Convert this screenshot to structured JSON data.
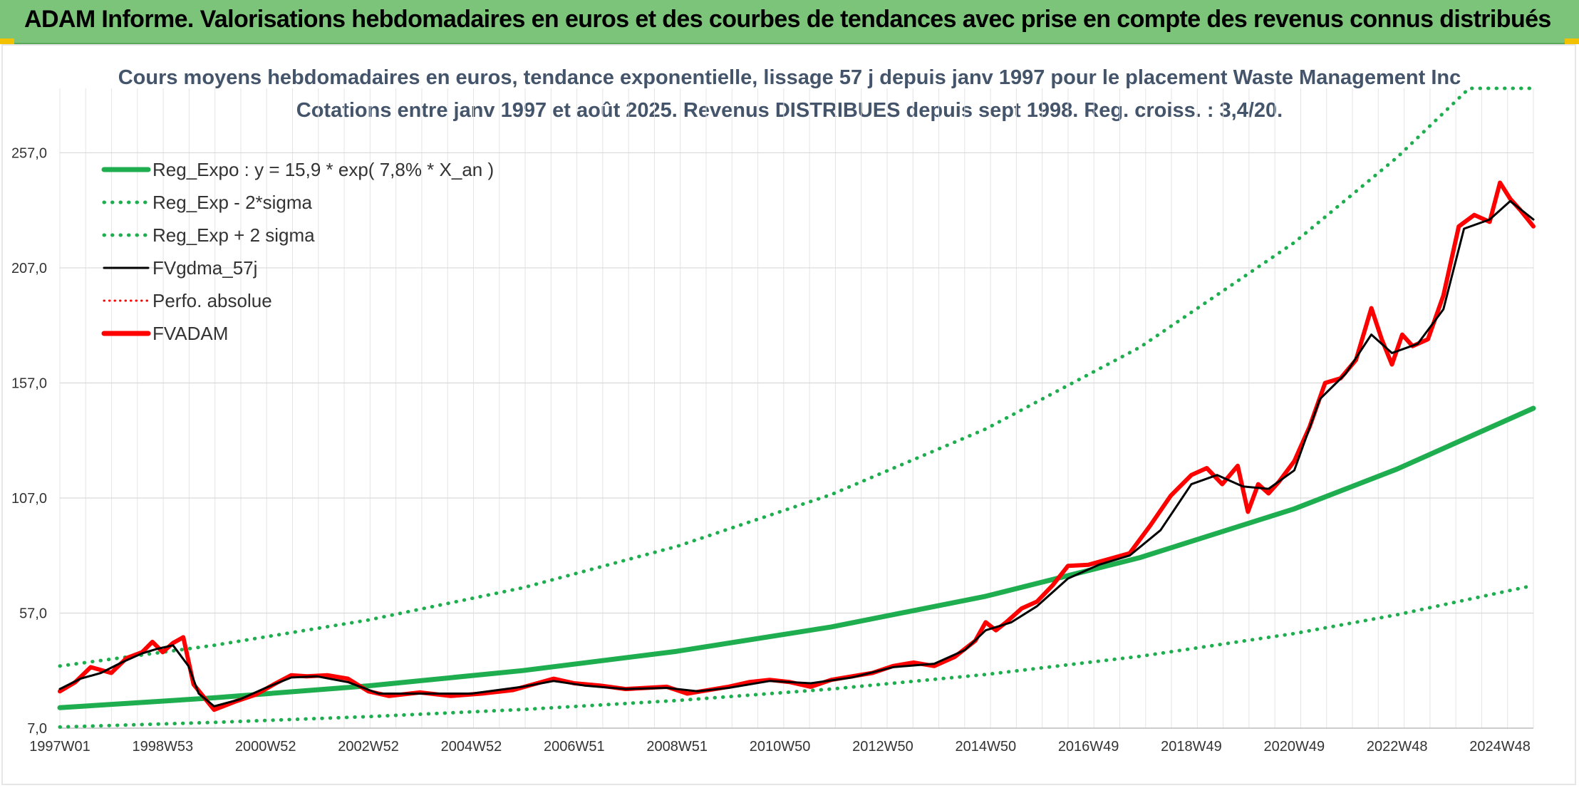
{
  "header": {
    "title": "ADAM Informe. Valorisations hebdomadaires en euros et des courbes de tendances avec prise en compte des revenus connus distribués"
  },
  "colors": {
    "banner": "#7cc47a",
    "regression": "#1fae4f",
    "fvadam": "#ff0000",
    "fvgdma": "#000000",
    "perfo": "#ff0000"
  },
  "chart_data": {
    "type": "line",
    "title": "Cours moyens hebdomadaires en euros, tendance exponentielle, lissage 57 j depuis janv 1997 pour le placement Waste Management Inc",
    "subtitle": "Cotations entre janv 1997 et août 2025. Revenus DISTRIBUES depuis sept 1998. Reg. croiss. : 3,4/20.",
    "xlabel": "",
    "ylabel": "",
    "x_range": [
      1997.0,
      2025.65
    ],
    "ylim": [
      7.0,
      285.0
    ],
    "y_ticks": [
      "7,0",
      "57,0",
      "107,0",
      "157,0",
      "207,0",
      "257,0"
    ],
    "y_tick_values": [
      7,
      57,
      107,
      157,
      207,
      257
    ],
    "x_ticks": [
      "1997W01",
      "1998W53",
      "2000W52",
      "2002W52",
      "2004W52",
      "2006W51",
      "2008W51",
      "2010W50",
      "2012W50",
      "2014W50",
      "2016W49",
      "2018W49",
      "2020W49",
      "2022W48",
      "2024W48"
    ],
    "x_tick_values": [
      1997.0,
      1999.0,
      2001.0,
      2003.0,
      2005.0,
      2007.0,
      2009.0,
      2011.0,
      2013.0,
      2015.0,
      2017.0,
      2019.0,
      2021.0,
      2023.0,
      2025.0
    ],
    "grid": true,
    "legend_position": "top-left",
    "legend": [
      {
        "name": "Reg_Expo : y = 15,9 * exp( 7,8% *  X_an )",
        "color": "#1fae4f",
        "style": "solid-thick"
      },
      {
        "name": "Reg_Exp - 2*sigma",
        "color": "#1fae4f",
        "style": "dotted"
      },
      {
        "name": "Reg_Exp + 2 sigma",
        "color": "#1fae4f",
        "style": "dotted"
      },
      {
        "name": "FVgdma_57j",
        "color": "#000000",
        "style": "solid"
      },
      {
        "name": "Perfo. absolue",
        "color": "#ff0000",
        "style": "dotted-thin"
      },
      {
        "name": "FVADAM",
        "color": "#ff0000",
        "style": "solid-thick"
      }
    ],
    "series": [
      {
        "name": "Reg_Expo : y = 15,9 * exp( 7,8% *  X_an )",
        "x": [
          1997.0,
          2000.0,
          2003.0,
          2006.0,
          2009.0,
          2012.0,
          2015.0,
          2018.0,
          2021.0,
          2023.0,
          2025.65
        ],
        "y": [
          15.9,
          20.2,
          25.4,
          32.0,
          40.4,
          51.0,
          64.3,
          81.1,
          102.3,
          119.6,
          146.0
        ]
      },
      {
        "name": "Reg_Exp - 2*sigma",
        "x": [
          1997.0,
          2000.0,
          2003.0,
          2006.0,
          2009.0,
          2012.0,
          2015.0,
          2018.0,
          2021.0,
          2023.0,
          2025.65
        ],
        "y": [
          7.5,
          9.5,
          12.0,
          15.1,
          19.0,
          24.0,
          30.3,
          38.2,
          48.1,
          56.3,
          69.0
        ]
      },
      {
        "name": "Reg_Exp + 2 sigma",
        "x": [
          1997.0,
          2000.0,
          2003.0,
          2006.0,
          2009.0,
          2012.0,
          2015.0,
          2018.0,
          2021.0,
          2023.0,
          2024.4,
          2025.65
        ],
        "y": [
          34.0,
          43.0,
          54.0,
          68.0,
          86.0,
          108.5,
          137.0,
          172.5,
          218.0,
          255.0,
          285.0,
          285.0
        ]
      },
      {
        "name": "FVADAM",
        "x": [
          1997.0,
          1997.3,
          1997.6,
          1998.0,
          1998.3,
          1998.6,
          1998.8,
          1999.0,
          1999.2,
          1999.4,
          1999.6,
          2000.0,
          2000.4,
          2000.8,
          2001.2,
          2001.5,
          2001.8,
          2002.2,
          2002.6,
          2003.0,
          2003.4,
          2004.0,
          2004.6,
          2005.2,
          2005.8,
          2006.2,
          2006.6,
          2007.0,
          2007.5,
          2008.0,
          2008.4,
          2008.8,
          2009.2,
          2009.6,
          2010.0,
          2010.4,
          2010.8,
          2011.2,
          2011.6,
          2012.0,
          2012.4,
          2012.8,
          2013.2,
          2013.6,
          2014.0,
          2014.4,
          2014.8,
          2015.0,
          2015.2,
          2015.4,
          2015.7,
          2016.0,
          2016.3,
          2016.6,
          2017.0,
          2017.4,
          2017.8,
          2018.2,
          2018.6,
          2019.0,
          2019.3,
          2019.6,
          2019.9,
          2020.1,
          2020.3,
          2020.5,
          2020.7,
          2021.0,
          2021.3,
          2021.6,
          2021.9,
          2022.2,
          2022.5,
          2022.7,
          2022.9,
          2023.1,
          2023.3,
          2023.6,
          2023.9,
          2024.2,
          2024.5,
          2024.8,
          2025.0,
          2025.2,
          2025.4,
          2025.65
        ],
        "y": [
          23.0,
          27.0,
          33.5,
          31.0,
          37.5,
          40.0,
          44.5,
          40.0,
          44.0,
          46.5,
          26.0,
          15.0,
          18.5,
          21.5,
          26.5,
          30.0,
          29.5,
          30.0,
          28.5,
          23.0,
          21.0,
          22.5,
          21.0,
          22.0,
          23.5,
          26.0,
          28.5,
          26.5,
          25.5,
          24.0,
          24.5,
          25.0,
          22.0,
          23.5,
          25.0,
          27.0,
          28.0,
          27.0,
          25.0,
          28.0,
          29.5,
          31.0,
          34.0,
          35.5,
          34.0,
          38.0,
          45.0,
          53.0,
          49.5,
          53.0,
          59.0,
          62.0,
          69.0,
          77.5,
          78.0,
          80.5,
          83.0,
          95.0,
          108.0,
          117.0,
          120.0,
          113.0,
          121.0,
          101.0,
          113.0,
          109.0,
          114.0,
          123.0,
          138.0,
          157.0,
          159.0,
          167.0,
          189.5,
          176.0,
          165.0,
          178.0,
          173.0,
          176.0,
          195.0,
          225.0,
          230.0,
          227.0,
          244.0,
          237.0,
          232.0,
          225.0
        ]
      },
      {
        "name": "FVgdma_57j",
        "x": [
          1997.0,
          1997.4,
          1997.8,
          1998.2,
          1998.6,
          1998.9,
          1999.2,
          1999.5,
          1999.7,
          2000.0,
          2000.5,
          2001.0,
          2001.5,
          2002.0,
          2002.6,
          2003.2,
          2004.0,
          2005.0,
          2006.0,
          2006.6,
          2007.2,
          2008.0,
          2008.8,
          2009.4,
          2010.0,
          2010.8,
          2011.6,
          2012.4,
          2013.2,
          2014.0,
          2014.6,
          2015.0,
          2015.5,
          2016.0,
          2016.6,
          2017.2,
          2017.8,
          2018.4,
          2019.0,
          2019.5,
          2020.0,
          2020.5,
          2021.0,
          2021.5,
          2022.0,
          2022.5,
          2022.9,
          2023.4,
          2023.9,
          2024.3,
          2024.8,
          2025.2,
          2025.65
        ],
        "y": [
          24.0,
          28.5,
          31.0,
          35.5,
          39.5,
          41.5,
          43.0,
          34.0,
          22.0,
          16.5,
          19.5,
          24.5,
          29.0,
          29.5,
          27.0,
          22.0,
          22.0,
          22.0,
          25.0,
          27.5,
          25.5,
          24.0,
          24.5,
          23.0,
          24.5,
          27.5,
          26.5,
          29.0,
          33.5,
          35.0,
          41.0,
          49.5,
          53.0,
          60.0,
          72.0,
          78.0,
          82.0,
          93.0,
          113.0,
          117.0,
          112.0,
          111.0,
          119.0,
          150.0,
          161.0,
          178.0,
          170.0,
          174.0,
          189.0,
          224.0,
          228.0,
          236.0,
          228.0
        ]
      }
    ]
  }
}
